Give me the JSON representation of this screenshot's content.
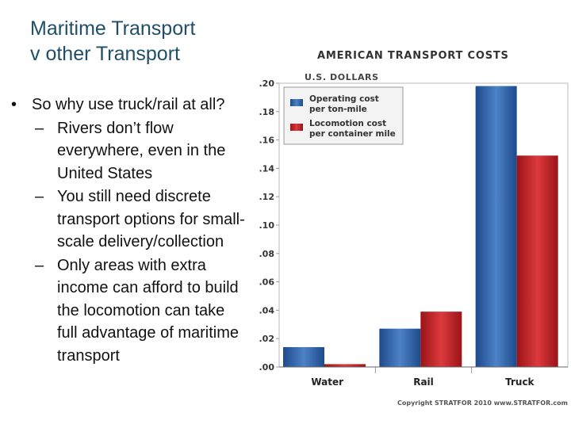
{
  "slide": {
    "title_line1": "Maritime Transport",
    "title_line2": "v other Transport",
    "bullet": "So why use truck/rail at all?",
    "sub_bullets": [
      "Rivers don’t flow everywhere, even in the United States",
      "You still need discrete transport options for small-scale delivery/collection",
      "Only areas with extra income can afford to build the locomotion can take full advantage of maritime transport"
    ],
    "bullet_mark": "•",
    "sub_mark": "–"
  },
  "chart_data": {
    "type": "bar",
    "title": "AMERICAN TRANSPORT COSTS",
    "ylabel": "U.S. DOLLARS",
    "xlabel": "",
    "categories": [
      "Water",
      "Rail",
      "Truck"
    ],
    "series": [
      {
        "name": "Operating cost per ton-mile",
        "legend_line1": "Operating cost",
        "legend_line2": "per ton-mile",
        "color": "#2f62a8",
        "values": [
          0.014,
          0.027,
          0.198
        ]
      },
      {
        "name": "Locomotion cost per container mile",
        "legend_line1": "Locomotion cost",
        "legend_line2": "per container mile",
        "color": "#c0282d",
        "values": [
          0.002,
          0.039,
          0.149
        ]
      }
    ],
    "ylim": [
      0,
      0.2
    ],
    "yticks": [
      0,
      0.02,
      0.04,
      0.06,
      0.08,
      0.1,
      0.12,
      0.14,
      0.16,
      0.18,
      0.2
    ],
    "ytick_labels": [
      ".00",
      ".02",
      ".04",
      ".06",
      ".08",
      ".10",
      ".12",
      ".14",
      ".16",
      ".18",
      ".20"
    ],
    "grid": false,
    "legend": "top-left",
    "source": "Copyright STRATFOR 2010   www.STRATFOR.com"
  }
}
